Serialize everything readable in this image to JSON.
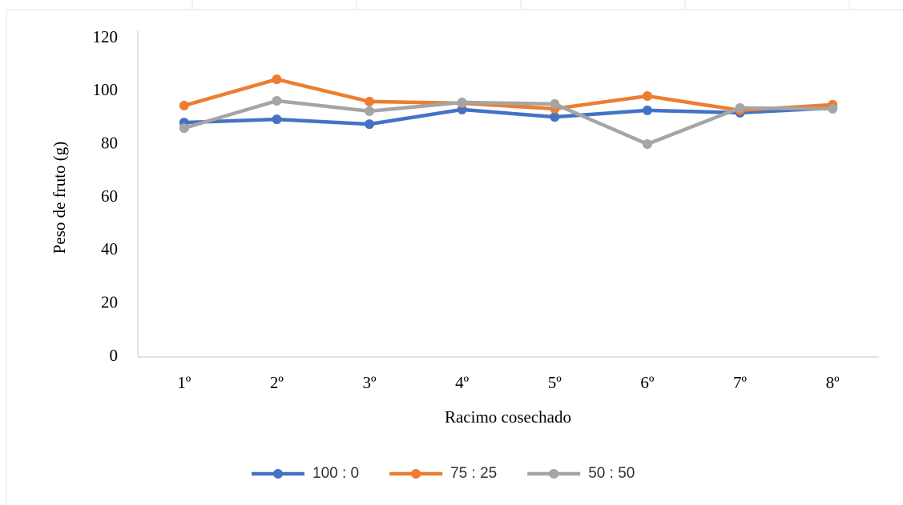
{
  "chart_data": {
    "type": "line",
    "y_label": "Peso de fruto (g)",
    "x_label": "Racimo cosechado",
    "categories": [
      "1º",
      "2º",
      "3º",
      "4º",
      "5º",
      "6º",
      "7º",
      "8º"
    ],
    "series": [
      {
        "name": "100 : 0",
        "color": "#4472c4",
        "values": [
          88.3,
          89.5,
          87.7,
          93.2,
          90.4,
          92.9,
          92.0,
          93.8
        ]
      },
      {
        "name": "75 : 25",
        "color": "#ed7d31",
        "values": [
          94.7,
          104.6,
          96.2,
          95.6,
          93.5,
          98.3,
          92.9,
          95.0
        ]
      },
      {
        "name": "50 : 50",
        "color": "#a5a5a5",
        "values": [
          86.2,
          96.5,
          92.6,
          95.9,
          95.3,
          80.2,
          93.8,
          93.5
        ]
      }
    ],
    "ylim": [
      0,
      120
    ],
    "yticks": [
      0,
      20,
      40,
      60,
      80,
      100,
      120
    ],
    "grid": false,
    "legend": "bottom"
  }
}
